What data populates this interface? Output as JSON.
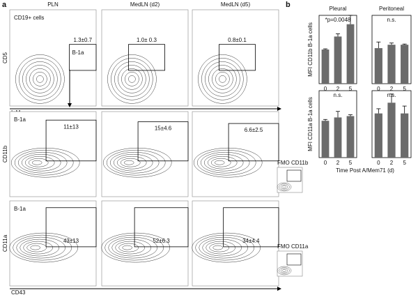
{
  "panel_a": {
    "label": "a",
    "columns": [
      "PLN",
      "MedLN (d2)",
      "MedLN (d5)"
    ],
    "rows": [
      {
        "population": "CD19+ cells",
        "gate": "B-1a",
        "y_axis": "CD5",
        "x_axis": "IgM",
        "gate_values": [
          "1.3±0.7",
          "1.0± 0.3",
          "0.8±0.1"
        ]
      },
      {
        "population": "B-1a",
        "y_axis": "CD11b",
        "gate_values": [
          "11±13",
          "15±4.6",
          "6.6±2.5"
        ],
        "fmo": "FMO CD11b"
      },
      {
        "population": "B-1a",
        "y_axis": "CD11a",
        "x_axis": "CD43",
        "gate_values": [
          "43±13",
          "52±6.3",
          "34±4.4"
        ],
        "fmo": "FMO CD11a"
      }
    ]
  },
  "panel_b": {
    "label": "b",
    "x_label": "Time Post A/Mem71 (d)"
  },
  "chart_data": [
    {
      "type": "bar",
      "title": "Pleural",
      "y_label": "MFI CD11b B-1a cells",
      "annotation": "*p=0.0048",
      "categories": [
        "0",
        "2",
        "5"
      ],
      "values": [
        500,
        690,
        870
      ],
      "errors": [
        10,
        40,
        130
      ],
      "color": "#6b6b6b",
      "ylim": [
        0,
        1000
      ]
    },
    {
      "type": "bar",
      "title": "Peritoneal",
      "annotation": "n.s.",
      "categories": [
        "0",
        "2",
        "5"
      ],
      "values": [
        520,
        570,
        570
      ],
      "errors": [
        90,
        25,
        10
      ],
      "color": "#6b6b6b",
      "ylim": [
        0,
        1000
      ]
    },
    {
      "type": "bar",
      "y_label": "MFI CD11a B-1a cells",
      "annotation": "n.s.",
      "categories": [
        "0",
        "2",
        "5"
      ],
      "values": [
        5500,
        6000,
        6200
      ],
      "errors": [
        200,
        900,
        200
      ],
      "color": "#6b6b6b",
      "ylim": [
        0,
        10000
      ]
    },
    {
      "type": "bar",
      "annotation": "n.s.",
      "categories": [
        "0",
        "2",
        "5"
      ],
      "values": [
        6600,
        8200,
        6600
      ],
      "errors": [
        700,
        1300,
        1100
      ],
      "color": "#6b6b6b",
      "ylim": [
        0,
        10000
      ]
    }
  ]
}
